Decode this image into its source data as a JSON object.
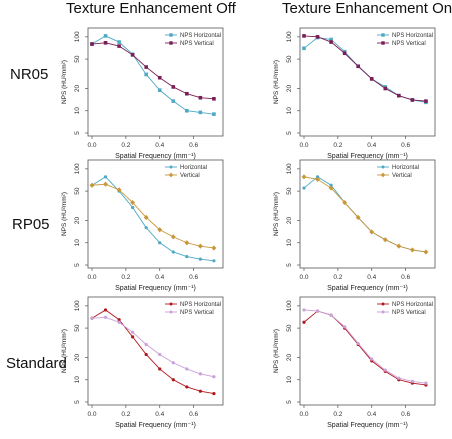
{
  "column_titles": [
    "Texture Enhancement Off",
    "Texture Enhancement On"
  ],
  "row_labels": [
    "NR05",
    "RP05",
    "Standard"
  ],
  "colors": {
    "teal": "#4ea9c4",
    "teal_dark": "#2a8fa8",
    "purple": "#7a1f56",
    "orange": "#c9963a",
    "orange_line": "#d9b060",
    "red": "#b01820",
    "lavender": "#c9a0d8",
    "pink_line": "#c05890"
  },
  "chart_data": [
    {
      "type": "line",
      "row": "NR05",
      "column": "Texture Enhancement Off",
      "xlabel": "Spatial Frequency (mm⁻¹)",
      "ylabel": "NPS (HU²mm²)",
      "ylog": true,
      "xlim": [
        0,
        0.75
      ],
      "ylim": [
        5,
        120
      ],
      "xticks": [
        "0.0",
        "0.2",
        "0.4",
        "0.6"
      ],
      "yticks": [
        "5",
        "10",
        "20",
        "50",
        "100"
      ],
      "legend_position": "top-right",
      "x": [
        0.0,
        0.08,
        0.16,
        0.24,
        0.32,
        0.4,
        0.48,
        0.56,
        0.64,
        0.72
      ],
      "series": [
        {
          "name": "NPS Horizontal",
          "color": "#4ea9c4",
          "marker": "square",
          "values": [
            80,
            103,
            85,
            58,
            31,
            19,
            13.5,
            10,
            9.5,
            9
          ]
        },
        {
          "name": "NPS Vertical",
          "color": "#7a1f56",
          "marker": "square",
          "values": [
            80,
            83,
            75,
            57,
            39,
            28,
            21,
            17,
            15,
            14.5
          ]
        }
      ]
    },
    {
      "type": "line",
      "row": "NR05",
      "column": "Texture Enhancement On",
      "xlabel": "Spatial Frequency (mm⁻¹)",
      "ylabel": "NPS (HU²mm²)",
      "ylog": true,
      "xlim": [
        0,
        0.75
      ],
      "ylim": [
        5,
        120
      ],
      "xticks": [
        "0.0",
        "0.2",
        "0.4",
        "0.6"
      ],
      "yticks": [
        "5",
        "10",
        "20",
        "50",
        "100"
      ],
      "legend_position": "top-right",
      "x": [
        0.0,
        0.08,
        0.16,
        0.24,
        0.32,
        0.4,
        0.48,
        0.56,
        0.64,
        0.72
      ],
      "series": [
        {
          "name": "NPS Horizontal",
          "color": "#4ea9c4",
          "marker": "square",
          "values": [
            70,
            98,
            92,
            63,
            40,
            27,
            21,
            16,
            14,
            13
          ]
        },
        {
          "name": "NPS Vertical",
          "color": "#7a1f56",
          "marker": "square",
          "values": [
            103,
            100,
            85,
            60,
            40,
            27,
            20,
            16,
            14,
            13.5
          ]
        }
      ]
    },
    {
      "type": "line",
      "row": "RP05",
      "column": "Texture Enhancement Off",
      "xlabel": "Spatial Frequency (mm⁻¹)",
      "ylabel": "NPS (HU²mm²)",
      "ylog": true,
      "xlim": [
        0,
        0.75
      ],
      "ylim": [
        5,
        120
      ],
      "xticks": [
        "0.0",
        "0.2",
        "0.4",
        "0.6"
      ],
      "yticks": [
        "5",
        "10",
        "20",
        "50",
        "100"
      ],
      "legend_position": "top-right",
      "x": [
        0.0,
        0.08,
        0.16,
        0.24,
        0.32,
        0.4,
        0.48,
        0.56,
        0.64,
        0.72
      ],
      "series": [
        {
          "name": "Horizontal",
          "color": "#4ea9c4",
          "marker": "dot",
          "values": [
            60,
            78,
            50,
            30,
            16,
            10,
            7.5,
            6.5,
            6,
            5.7
          ]
        },
        {
          "name": "Vertical",
          "color": "#c9963a",
          "marker": "diamond",
          "values": [
            60,
            62,
            52,
            35,
            22,
            15,
            12,
            10,
            9,
            8.5
          ]
        }
      ]
    },
    {
      "type": "line",
      "row": "RP05",
      "column": "Texture Enhancement On",
      "xlabel": "Spatial Frequency (mm⁻¹)",
      "ylabel": "NPS (HU²mm²)",
      "ylog": true,
      "xlim": [
        0,
        0.75
      ],
      "ylim": [
        5,
        120
      ],
      "xticks": [
        "0.0",
        "0.2",
        "0.4",
        "0.6"
      ],
      "yticks": [
        "5",
        "10",
        "20",
        "50",
        "100"
      ],
      "legend_position": "top-right",
      "x": [
        0.0,
        0.08,
        0.16,
        0.24,
        0.32,
        0.4,
        0.48,
        0.56,
        0.64,
        0.72
      ],
      "series": [
        {
          "name": "Horizontal",
          "color": "#4ea9c4",
          "marker": "dot",
          "values": [
            55,
            78,
            60,
            35,
            22,
            14,
            11,
            9,
            8,
            7.5
          ]
        },
        {
          "name": "Vertical",
          "color": "#c9963a",
          "marker": "diamond",
          "values": [
            78,
            72,
            55,
            35,
            22,
            14,
            11,
            9,
            8,
            7.5
          ]
        }
      ]
    },
    {
      "type": "line",
      "row": "Standard",
      "column": "Texture Enhancement Off",
      "xlabel": "Spatial Frequency (mm⁻¹)",
      "ylabel": "NPS (HU²mm²)",
      "ylog": true,
      "xlim": [
        0,
        0.75
      ],
      "ylim": [
        5,
        120
      ],
      "xticks": [
        "0.0",
        "0.2",
        "0.4",
        "0.6"
      ],
      "yticks": [
        "5",
        "10",
        "20",
        "50",
        "100"
      ],
      "legend_position": "top-right",
      "x": [
        0.0,
        0.08,
        0.16,
        0.24,
        0.32,
        0.4,
        0.48,
        0.56,
        0.64,
        0.72
      ],
      "series": [
        {
          "name": "NPS Horizontal",
          "color": "#b01820",
          "marker": "dot",
          "values": [
            68,
            88,
            65,
            38,
            22,
            14,
            10,
            8,
            7,
            6.5
          ]
        },
        {
          "name": "NPS Vertical",
          "color": "#c9a0d8",
          "marker": "dot",
          "values": [
            68,
            70,
            60,
            44,
            30,
            22,
            17,
            14,
            12,
            11
          ]
        }
      ]
    },
    {
      "type": "line",
      "row": "Standard",
      "column": "Texture Enhancement On",
      "xlabel": "Spatial Frequency (mm⁻¹)",
      "ylabel": "NPS (HU²mm²)",
      "ylog": true,
      "xlim": [
        0,
        0.75
      ],
      "ylim": [
        5,
        120
      ],
      "xticks": [
        "0.0",
        "0.2",
        "0.4",
        "0.6"
      ],
      "yticks": [
        "5",
        "10",
        "20",
        "50",
        "100"
      ],
      "legend_position": "top-right",
      "x": [
        0.0,
        0.08,
        0.16,
        0.24,
        0.32,
        0.4,
        0.48,
        0.56,
        0.64,
        0.72
      ],
      "series": [
        {
          "name": "NPS Horizontal",
          "color": "#b01820",
          "marker": "dot",
          "values": [
            60,
            85,
            75,
            50,
            30,
            18,
            13,
            10,
            9,
            8.5
          ]
        },
        {
          "name": "NPS Vertical",
          "color": "#c9a0d8",
          "marker": "dot",
          "values": [
            88,
            85,
            75,
            52,
            31,
            19,
            13.5,
            10.5,
            9.5,
            9
          ]
        }
      ]
    }
  ]
}
